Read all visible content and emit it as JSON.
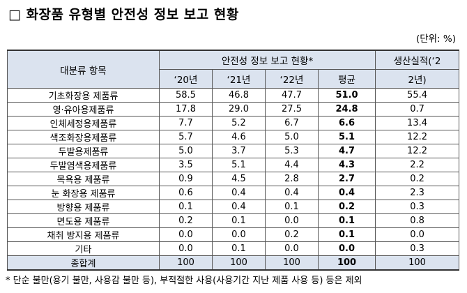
{
  "title": "□ 화장품 유형별 안전성 정보 보고 현황",
  "unit": "(단위: %)",
  "header": {
    "category": "대분류 항목",
    "group": "안전성 정보 보고 현황*",
    "years": [
      "‘20년",
      "‘21년",
      "‘22년"
    ],
    "average": "평균",
    "production_line1": "생산실적(‘2",
    "production_line2": "2년)"
  },
  "rows": [
    {
      "name": "기초화장용 제품류",
      "y20": "58.5",
      "y21": "46.8",
      "y22": "47.7",
      "avg": "51.0",
      "prod": "55.4"
    },
    {
      "name": "영·유아용제품류",
      "y20": "17.8",
      "y21": "29.0",
      "y22": "27.5",
      "avg": "24.8",
      "prod": "0.7"
    },
    {
      "name": "인체세정용제품류",
      "y20": "7.7",
      "y21": "5.2",
      "y22": "6.7",
      "avg": "6.6",
      "prod": "13.4"
    },
    {
      "name": "색조화장용제품류",
      "y20": "5.7",
      "y21": "4.6",
      "y22": "5.0",
      "avg": "5.1",
      "prod": "12.2"
    },
    {
      "name": "두발용제품류",
      "y20": "5.0",
      "y21": "3.7",
      "y22": "5.3",
      "avg": "4.7",
      "prod": "12.2"
    },
    {
      "name": "두발염색용제품류",
      "y20": "3.5",
      "y21": "5.1",
      "y22": "4.4",
      "avg": "4.3",
      "prod": "2.2"
    },
    {
      "name": "목욕용 제품류",
      "y20": "0.9",
      "y21": "4.5",
      "y22": "2.8",
      "avg": "2.7",
      "prod": "0.2"
    },
    {
      "name": "눈 화장용 제품류",
      "y20": "0.6",
      "y21": "0.4",
      "y22": "0.4",
      "avg": "0.4",
      "prod": "2.3"
    },
    {
      "name": "방향용 제품류",
      "y20": "0.1",
      "y21": "0.4",
      "y22": "0.1",
      "avg": "0.2",
      "prod": "0.3"
    },
    {
      "name": "면도용 제품류",
      "y20": "0.2",
      "y21": "0.1",
      "y22": "0.0",
      "avg": "0.1",
      "prod": "0.8"
    },
    {
      "name": "채취 방지용 제품류",
      "y20": "0.0",
      "y21": "0.0",
      "y22": "0.2",
      "avg": "0.1",
      "prod": "0.0"
    },
    {
      "name": "기타",
      "y20": "0.0",
      "y21": "0.1",
      "y22": "0.0",
      "avg": "0.0",
      "prod": "0.3"
    }
  ],
  "total": {
    "name": "종합계",
    "y20": "100",
    "y21": "100",
    "y22": "100",
    "avg": "100",
    "prod": "100"
  },
  "footnote": "* 단순 불만(용기 불만, 사용감 불만 등), 부적절한 사용(사용기간 지난 제품 사용 등) 등은 제외"
}
